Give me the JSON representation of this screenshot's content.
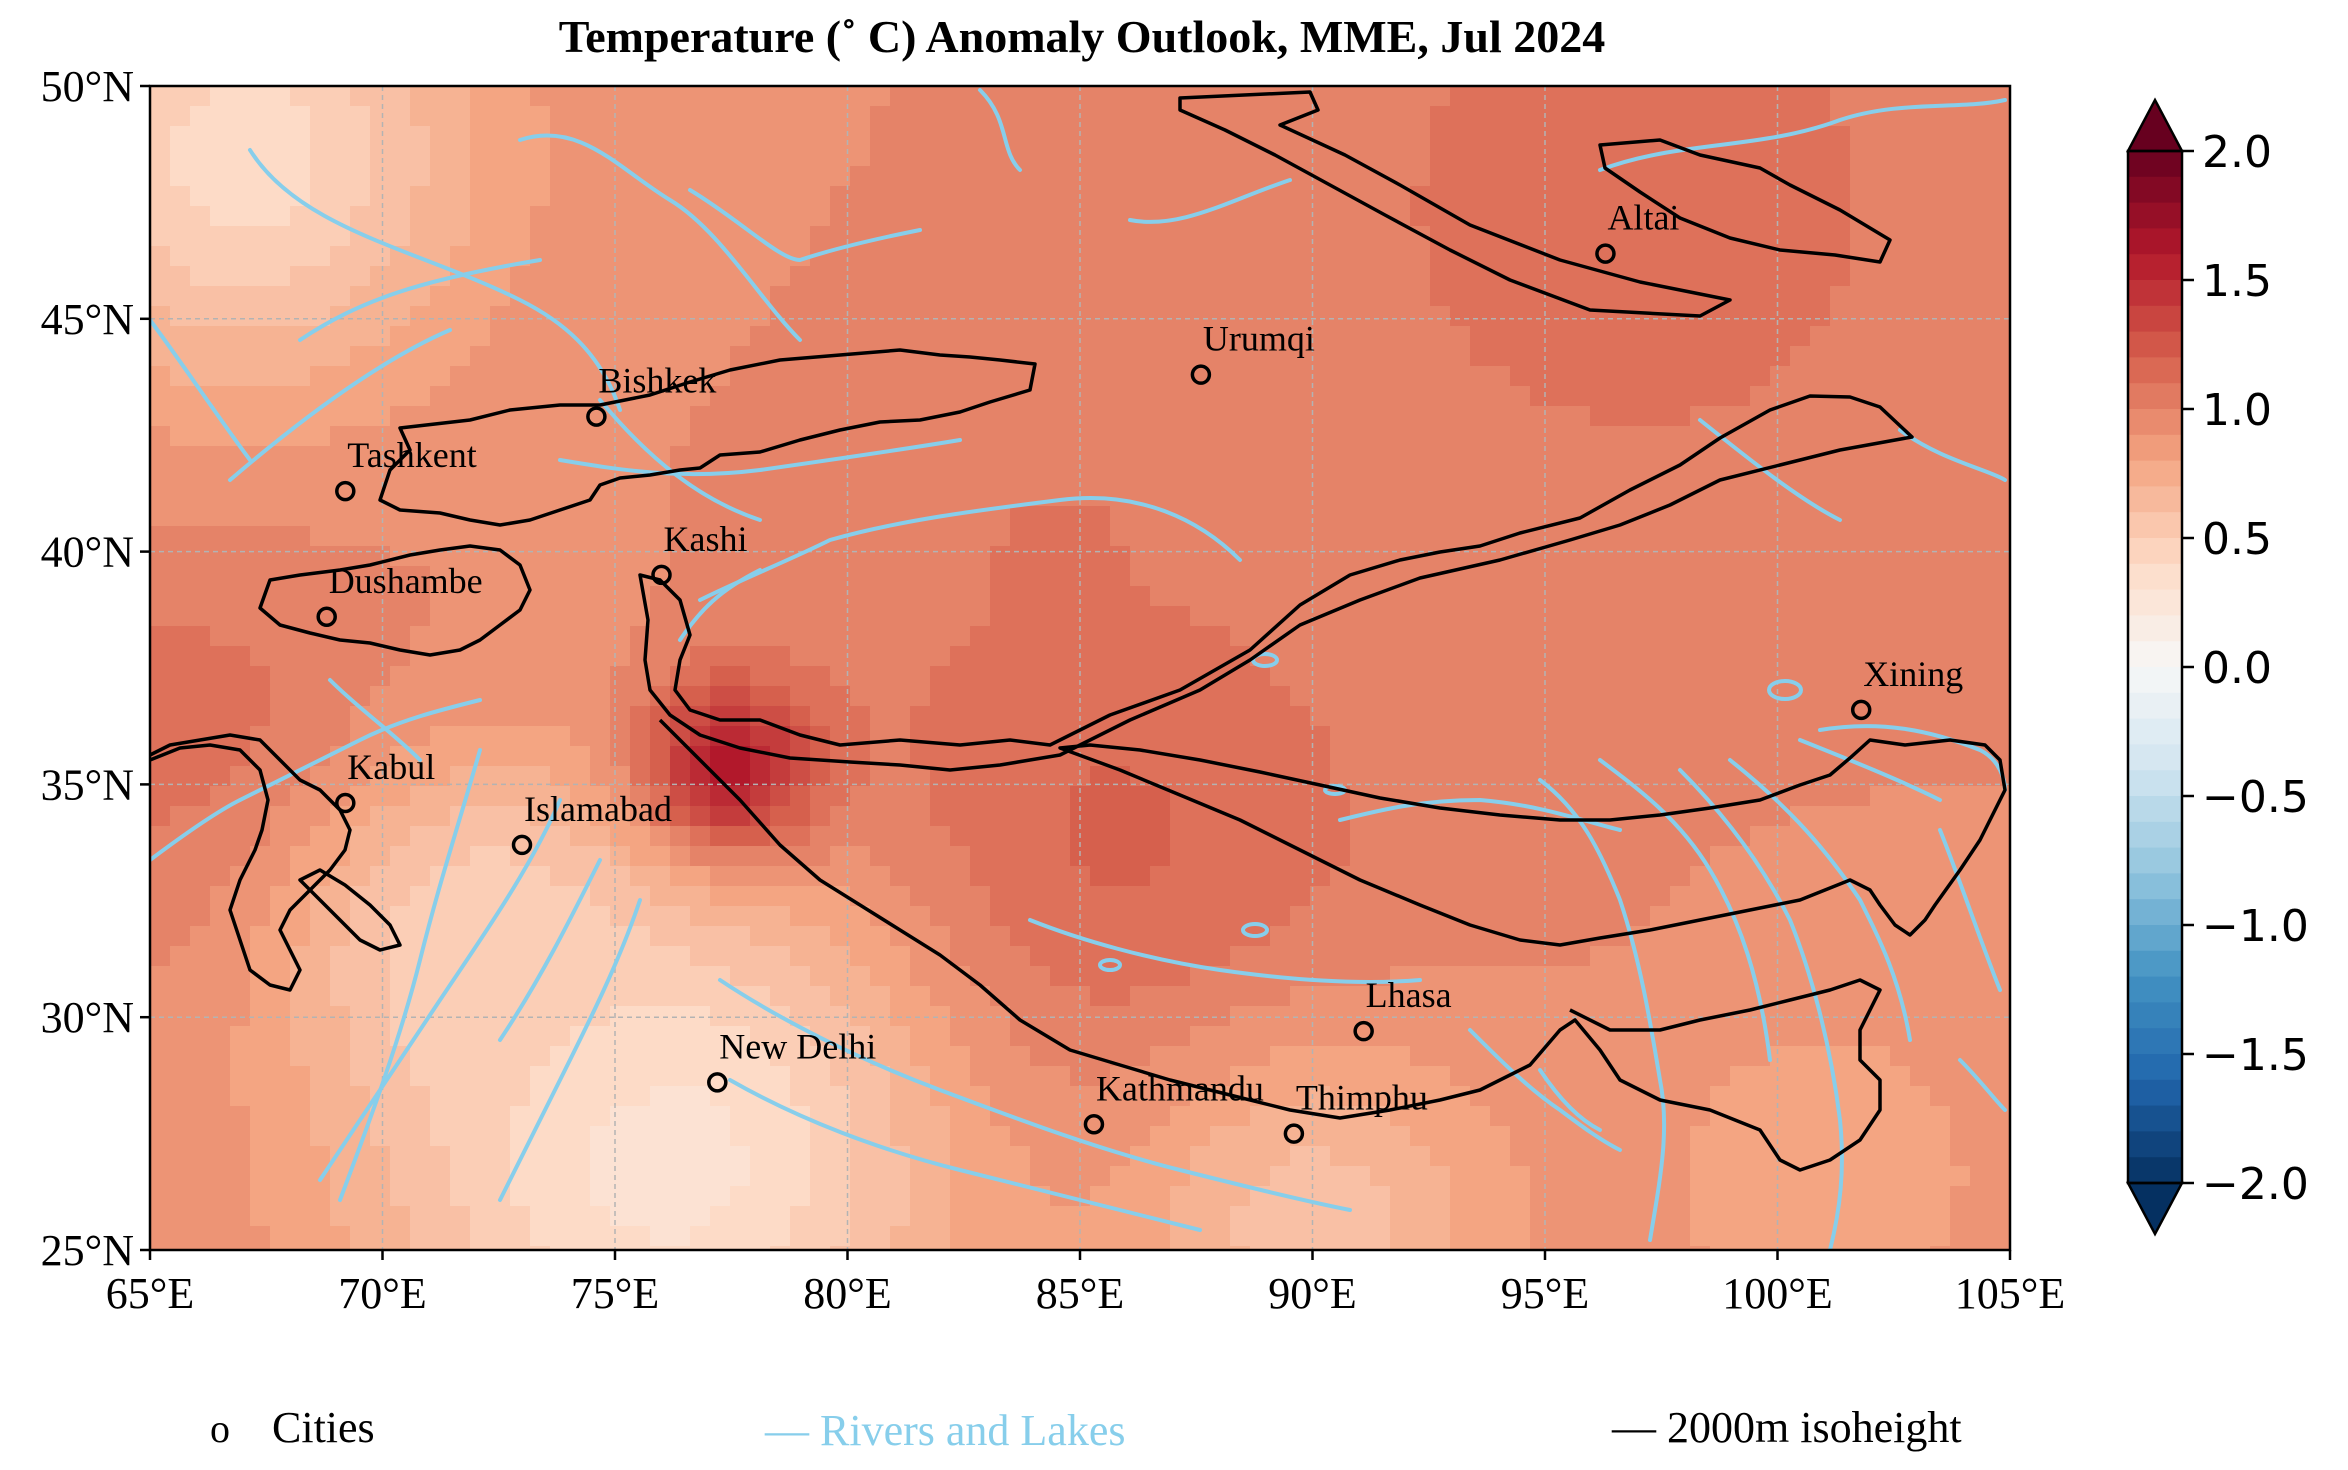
{
  "title": "Temperature (˚ C) Anomaly Outlook, MME, Jul  2024",
  "map": {
    "lon_range": [
      65,
      105
    ],
    "lat_range": [
      25,
      50
    ],
    "lon_ticks": [
      {
        "lon": 65,
        "label": "65°E"
      },
      {
        "lon": 70,
        "label": "70°E"
      },
      {
        "lon": 75,
        "label": "75°E"
      },
      {
        "lon": 80,
        "label": "80°E"
      },
      {
        "lon": 85,
        "label": "85°E"
      },
      {
        "lon": 90,
        "label": "90°E"
      },
      {
        "lon": 95,
        "label": "95°E"
      },
      {
        "lon": 100,
        "label": "100°E"
      },
      {
        "lon": 105,
        "label": "105°E"
      }
    ],
    "lat_ticks": [
      {
        "lat": 50,
        "label": "50°N"
      },
      {
        "lat": 45,
        "label": "45°N"
      },
      {
        "lat": 40,
        "label": "40°N"
      },
      {
        "lat": 35,
        "label": "35°N"
      },
      {
        "lat": 30,
        "label": "30°N"
      },
      {
        "lat": 25,
        "label": "25°N"
      }
    ],
    "grid": true,
    "cities": [
      {
        "name": "Altai",
        "lon": 96.3,
        "lat": 46.4
      },
      {
        "name": "Urumqi",
        "lon": 87.6,
        "lat": 43.8
      },
      {
        "name": "Bishkek",
        "lon": 74.6,
        "lat": 42.9
      },
      {
        "name": "Tashkent",
        "lon": 69.2,
        "lat": 41.3
      },
      {
        "name": "Kashi",
        "lon": 76.0,
        "lat": 39.5
      },
      {
        "name": "Dushambe",
        "lon": 68.8,
        "lat": 38.6
      },
      {
        "name": "Xining",
        "lon": 101.8,
        "lat": 36.6
      },
      {
        "name": "Kabul",
        "lon": 69.2,
        "lat": 34.6
      },
      {
        "name": "Islamabad",
        "lon": 73.0,
        "lat": 33.7
      },
      {
        "name": "Lhasa",
        "lon": 91.1,
        "lat": 29.7
      },
      {
        "name": "New Delhi",
        "lon": 77.2,
        "lat": 28.6
      },
      {
        "name": "Kathmandu",
        "lon": 85.3,
        "lat": 27.7
      },
      {
        "name": "Thimphu",
        "lon": 89.6,
        "lat": 27.5
      }
    ],
    "anomaly_field": {
      "units": "°C",
      "background_value": 0.95,
      "features": [
        {
          "lon": 77.5,
          "lat": 35.0,
          "value": 2.1,
          "sigma": 1.4
        },
        {
          "lon": 85.0,
          "lat": 33.0,
          "value": 1.2,
          "sigma": 4.5
        },
        {
          "lon": 97.0,
          "lat": 47.5,
          "value": 1.15,
          "sigma": 4.0
        },
        {
          "lon": 66.0,
          "lat": 36.0,
          "value": 1.1,
          "sigma": 3.0
        },
        {
          "lon": 76.0,
          "lat": 27.0,
          "value": 0.3,
          "sigma": 4.5
        },
        {
          "lon": 72.0,
          "lat": 31.5,
          "value": 0.45,
          "sigma": 2.5
        },
        {
          "lon": 67.0,
          "lat": 48.5,
          "value": 0.4,
          "sigma": 3.5
        },
        {
          "lon": 90.0,
          "lat": 25.5,
          "value": 0.6,
          "sigma": 3.0
        },
        {
          "lon": 101.0,
          "lat": 26.5,
          "value": 0.75,
          "sigma": 2.5
        },
        {
          "lon": 84.5,
          "lat": 40.0,
          "value": 1.1,
          "sigma": 1.0
        }
      ]
    }
  },
  "colorbar": {
    "min": -2.0,
    "max": 2.0,
    "extend": "both",
    "tick_values": [
      2.0,
      1.5,
      1.0,
      0.5,
      0.0,
      -0.5,
      -1.0,
      -1.5,
      -2.0
    ],
    "tick_labels": [
      "2.0",
      "1.5",
      "1.0",
      "0.5",
      "0.0",
      "−0.5",
      "−1.0",
      "−1.5",
      "−2.0"
    ],
    "colors": [
      "#67001f",
      "#b2182b",
      "#d6604d",
      "#f4a582",
      "#fddbc7",
      "#f7f7f7",
      "#d1e5f0",
      "#92c5de",
      "#4393c3",
      "#2166ac",
      "#053061"
    ]
  },
  "legend": {
    "cities_marker": "o",
    "cities_label": "Cities",
    "rivers_label": "— Rivers and Lakes",
    "isoheight_label": "— 2000m isoheight",
    "river_color": "#87ceeb",
    "isoheight_color": "#000000"
  }
}
